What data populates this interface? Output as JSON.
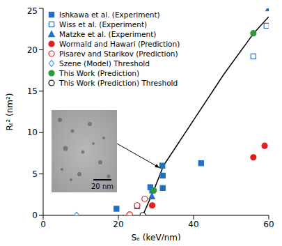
{
  "chart_data": {
    "type": "scatter",
    "x_label": "Sₑ (keV/nm)",
    "y_label": "Rₜ² (nm²)",
    "xlim": [
      0,
      60
    ],
    "ylim": [
      0,
      25
    ],
    "xticks": [
      0,
      20,
      40,
      60
    ],
    "yticks": [
      0,
      5,
      10,
      15,
      20,
      25
    ],
    "legend": "upper left",
    "series": [
      {
        "name": "Ishkawa et al. (Experiment)",
        "color": "#1f6fc5",
        "marker": "square",
        "x": [
          19.5,
          25,
          28.5,
          29,
          31.7,
          31.8,
          31.8,
          42
        ],
        "values": [
          0.8,
          1.1,
          3.4,
          3.0,
          6.0,
          4.8,
          3.3,
          6.3
        ]
      },
      {
        "name": "Wiss et al. (Experiment)",
        "color": "#1f6fc5",
        "marker": "square-open",
        "x": [
          55.9,
          59.4
        ],
        "values": [
          19.2,
          22.9
        ]
      },
      {
        "name": "Matzke et al. (Experiment)",
        "color": "#1f6fc5",
        "marker": "triangle",
        "x": [
          28.9,
          60
        ],
        "values": [
          2.3,
          25
        ]
      },
      {
        "name": "Wormald and Hawari (Prediction)",
        "color": "#e02020",
        "marker": "circle",
        "x": [
          29,
          55.9,
          58.9
        ],
        "values": [
          1.2,
          7.0,
          8.4
        ]
      },
      {
        "name": "Pisarev and Starikov (Prediction)",
        "color": "#e02020",
        "marker": "circle-open",
        "x": [
          23,
          25,
          27
        ],
        "values": [
          0.1,
          1.2,
          2.0
        ]
      },
      {
        "name": "Szene (Model) Threshold",
        "color": "#3a9ad9",
        "marker": "diamond-open",
        "x": [
          8.9
        ],
        "values": [
          0
        ]
      },
      {
        "name": "This Work (Prediction)",
        "color": "#2e9a3a",
        "marker": "circle",
        "x": [
          29.4,
          55.9
        ],
        "values": [
          3.0,
          22.0
        ]
      },
      {
        "name": "This Work (Prediction) Threshold",
        "color": "#000000",
        "marker": "circle-open",
        "x": [
          26.5
        ],
        "values": [
          0
        ]
      }
    ],
    "curve": {
      "x": [
        26.5,
        29.4,
        32,
        40,
        48,
        56,
        60
      ],
      "values": [
        0,
        3.0,
        6.0,
        11.5,
        17,
        22,
        24
      ],
      "color": "#000000",
      "line_style": "solid"
    },
    "inset": {
      "scale_bar": "20 nm",
      "points_to": [
        31.7,
        6.0
      ]
    }
  }
}
